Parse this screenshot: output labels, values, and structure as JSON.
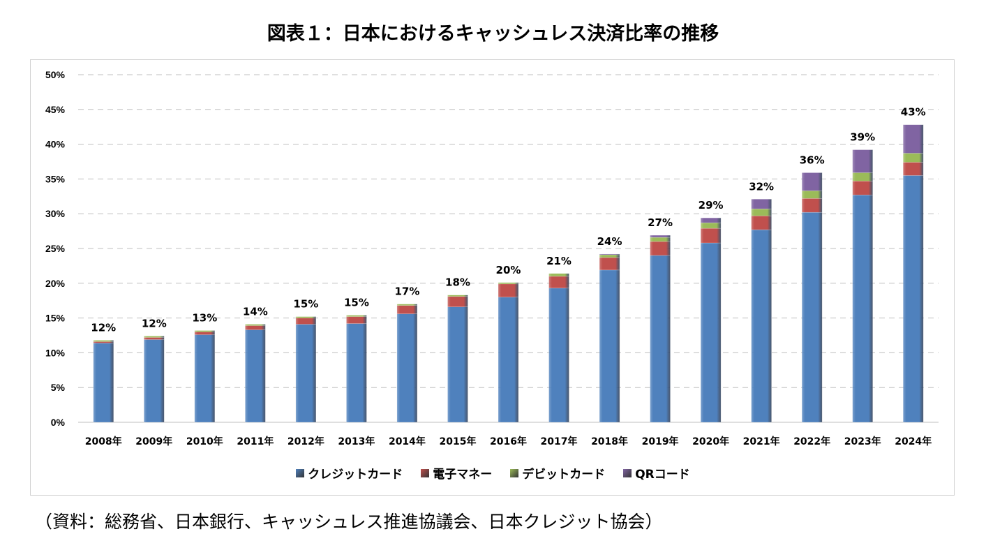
{
  "title": "図表１：日本におけるキャッシュレス決済比率の推移",
  "source": "（資料：総務省、日本銀行、キャッシュレス推進協議会、日本クレジット協会）",
  "chart_data": {
    "type": "bar",
    "stacked": true,
    "title": "図表１：日本におけるキャッシュレス決済比率の推移",
    "categories": [
      "2008年",
      "2009年",
      "2010年",
      "2011年",
      "2012年",
      "2013年",
      "2014年",
      "2015年",
      "2016年",
      "2017年",
      "2018年",
      "2019年",
      "2020年",
      "2021年",
      "2022年",
      "2023年",
      "2024年"
    ],
    "ylim": [
      0,
      50
    ],
    "yticks": [
      "0%",
      "5%",
      "10%",
      "15%",
      "20%",
      "25%",
      "30%",
      "35%",
      "40%",
      "45%",
      "50%"
    ],
    "grid": true,
    "legend_position": "bottom",
    "series": [
      {
        "name": "クレジットカード",
        "color": "#4f81bd",
        "values": [
          11.4,
          11.9,
          12.6,
          13.3,
          14.1,
          14.2,
          15.6,
          16.6,
          18.0,
          19.3,
          21.9,
          24.0,
          25.8,
          27.7,
          30.2,
          32.7,
          35.5
        ]
      },
      {
        "name": "電子マネー",
        "color": "#c0504d",
        "values": [
          0.2,
          0.3,
          0.4,
          0.6,
          0.9,
          1.0,
          1.2,
          1.5,
          1.9,
          1.7,
          1.8,
          2.0,
          2.1,
          2.0,
          2.0,
          2.0,
          1.9
        ]
      },
      {
        "name": "デビットカード",
        "color": "#9bbb59",
        "values": [
          0.2,
          0.2,
          0.2,
          0.2,
          0.2,
          0.2,
          0.2,
          0.2,
          0.2,
          0.4,
          0.4,
          0.6,
          0.8,
          1.0,
          1.1,
          1.2,
          1.3
        ]
      },
      {
        "name": "QRコード",
        "color": "#8064a2",
        "values": [
          0,
          0,
          0,
          0,
          0,
          0,
          0,
          0,
          0,
          0,
          0.1,
          0.3,
          0.7,
          1.4,
          2.6,
          3.3,
          4.1
        ]
      }
    ],
    "total_labels": [
      "12%",
      "12%",
      "13%",
      "14%",
      "15%",
      "15%",
      "17%",
      "18%",
      "20%",
      "21%",
      "24%",
      "27%",
      "29%",
      "32%",
      "36%",
      "39%",
      "43%"
    ]
  }
}
